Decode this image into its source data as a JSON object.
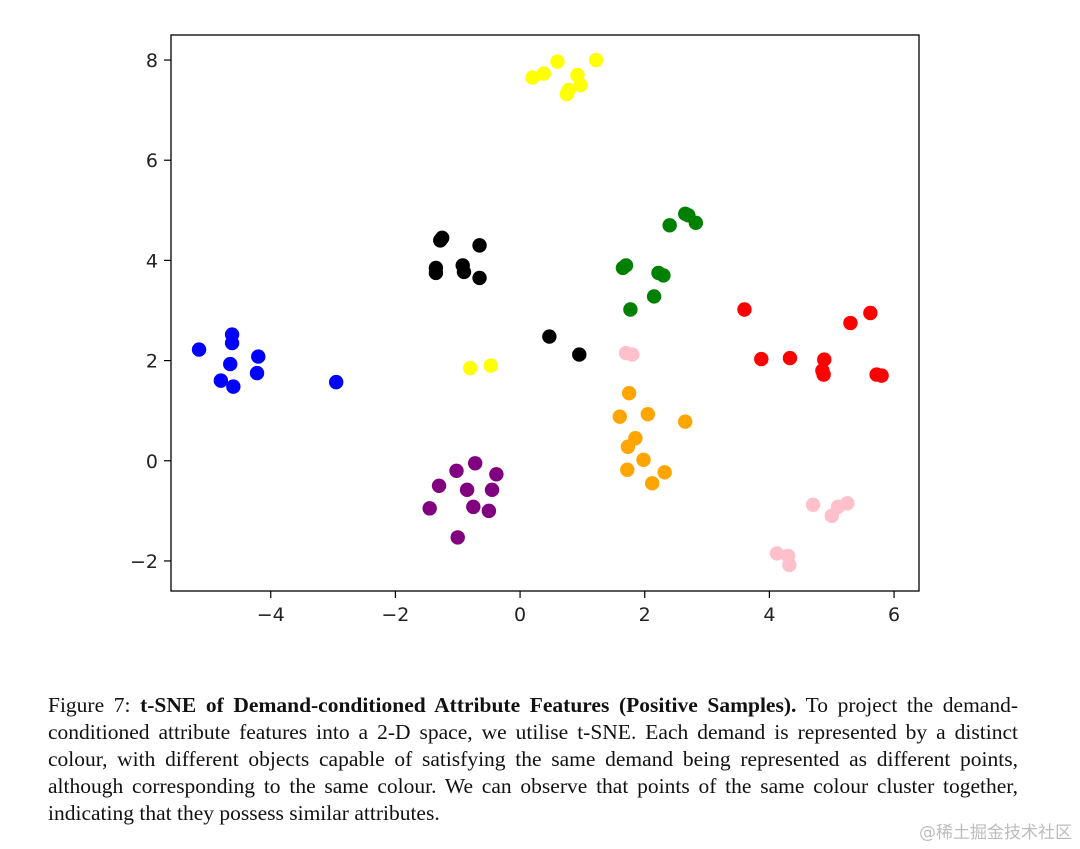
{
  "chart_data": {
    "type": "scatter",
    "title": "",
    "xlabel": "",
    "ylabel": "",
    "xlim": [
      -5.6,
      6.4
    ],
    "ylim": [
      -2.6,
      8.5
    ],
    "xticks": [
      -4,
      -2,
      0,
      2,
      4,
      6
    ],
    "yticks": [
      -2,
      0,
      2,
      4,
      6,
      8
    ],
    "xtick_labels": [
      "−4",
      "−2",
      "0",
      "2",
      "4",
      "6"
    ],
    "ytick_labels": [
      "−2",
      "0",
      "2",
      "4",
      "6",
      "8"
    ],
    "grid": false,
    "series": [
      {
        "color": "#0000ff",
        "points": [
          [
            -5.15,
            2.22
          ],
          [
            -4.62,
            2.52
          ],
          [
            -4.62,
            2.35
          ],
          [
            -4.65,
            1.93
          ],
          [
            -4.2,
            2.08
          ],
          [
            -4.22,
            1.75
          ],
          [
            -4.8,
            1.6
          ],
          [
            -4.6,
            1.48
          ],
          [
            -2.95,
            1.57
          ]
        ]
      },
      {
        "color": "#ffff00",
        "points": [
          [
            0.2,
            7.65
          ],
          [
            0.38,
            7.73
          ],
          [
            0.6,
            7.97
          ],
          [
            1.22,
            8.0
          ],
          [
            0.92,
            7.7
          ],
          [
            0.97,
            7.5
          ],
          [
            0.75,
            7.32
          ],
          [
            0.78,
            7.4
          ],
          [
            -0.8,
            1.85
          ],
          [
            -0.47,
            1.9
          ]
        ]
      },
      {
        "color": "#000000",
        "points": [
          [
            -1.25,
            4.45
          ],
          [
            -1.28,
            4.4
          ],
          [
            -0.65,
            4.3
          ],
          [
            -1.35,
            3.85
          ],
          [
            -1.35,
            3.75
          ],
          [
            -0.92,
            3.9
          ],
          [
            -0.9,
            3.77
          ],
          [
            -0.65,
            3.65
          ],
          [
            0.47,
            2.48
          ],
          [
            0.95,
            2.12
          ]
        ]
      },
      {
        "color": "#008000",
        "points": [
          [
            2.65,
            4.93
          ],
          [
            2.7,
            4.9
          ],
          [
            2.4,
            4.7
          ],
          [
            2.82,
            4.75
          ],
          [
            1.65,
            3.85
          ],
          [
            1.7,
            3.9
          ],
          [
            2.22,
            3.75
          ],
          [
            2.3,
            3.7
          ],
          [
            2.15,
            3.28
          ],
          [
            1.77,
            3.02
          ]
        ]
      },
      {
        "color": "#ff0000",
        "points": [
          [
            3.6,
            3.02
          ],
          [
            5.62,
            2.95
          ],
          [
            5.3,
            2.75
          ],
          [
            3.87,
            2.03
          ],
          [
            4.33,
            2.05
          ],
          [
            4.88,
            2.02
          ],
          [
            4.85,
            1.8
          ],
          [
            4.87,
            1.72
          ],
          [
            5.72,
            1.72
          ],
          [
            5.8,
            1.7
          ]
        ]
      },
      {
        "color": "#ffc0cb",
        "points": [
          [
            1.7,
            2.15
          ],
          [
            1.8,
            2.12
          ],
          [
            4.7,
            -0.88
          ],
          [
            5.25,
            -0.85
          ],
          [
            5.1,
            -0.92
          ],
          [
            5.0,
            -1.1
          ],
          [
            4.12,
            -1.85
          ],
          [
            4.3,
            -1.9
          ],
          [
            4.32,
            -2.08
          ]
        ]
      },
      {
        "color": "#ffa500",
        "points": [
          [
            1.75,
            1.35
          ],
          [
            1.6,
            0.88
          ],
          [
            2.05,
            0.93
          ],
          [
            2.65,
            0.78
          ],
          [
            1.85,
            0.45
          ],
          [
            1.73,
            0.28
          ],
          [
            1.98,
            0.02
          ],
          [
            1.72,
            -0.18
          ],
          [
            2.32,
            -0.23
          ],
          [
            2.12,
            -0.45
          ]
        ]
      },
      {
        "color": "#800080",
        "points": [
          [
            -0.72,
            -0.05
          ],
          [
            -1.02,
            -0.2
          ],
          [
            -0.38,
            -0.27
          ],
          [
            -1.3,
            -0.5
          ],
          [
            -0.85,
            -0.58
          ],
          [
            -0.45,
            -0.58
          ],
          [
            -1.45,
            -0.95
          ],
          [
            -0.75,
            -0.92
          ],
          [
            -0.5,
            -1.0
          ],
          [
            -1.0,
            -1.53
          ]
        ]
      }
    ]
  },
  "caption": {
    "label": "Figure 7: ",
    "bold": "t-SNE of Demand-conditioned Attribute Features (Positive Samples).",
    "text": " To project the demand-conditioned attribute features into a 2-D space, we utilise t-SNE. Each demand is represented by a distinct colour, with different objects capable of satisfying the same demand being represented as different points, although corresponding to the same colour. We can observe that points of the same colour cluster together, indicating that they possess similar attributes."
  },
  "watermark": "@稀土掘金技术社区"
}
